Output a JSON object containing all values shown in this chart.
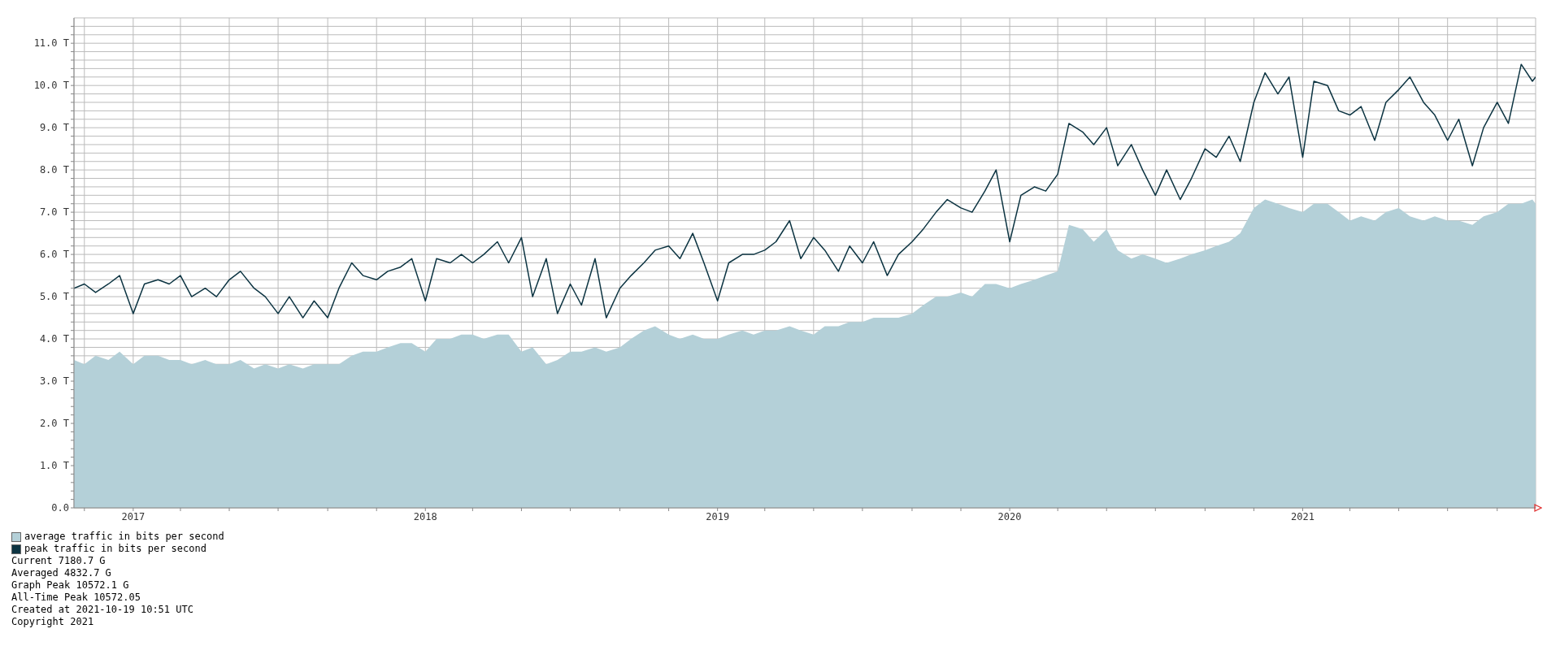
{
  "chart_data": {
    "type": "area",
    "x": [
      "2016-10-19",
      "2016-11-01",
      "2016-11-15",
      "2016-12-01",
      "2016-12-15",
      "2017-01-01",
      "2017-01-15",
      "2017-02-01",
      "2017-02-15",
      "2017-03-01",
      "2017-03-15",
      "2017-04-01",
      "2017-04-15",
      "2017-05-01",
      "2017-05-15",
      "2017-06-01",
      "2017-06-15",
      "2017-07-01",
      "2017-07-15",
      "2017-08-01",
      "2017-08-15",
      "2017-09-01",
      "2017-09-15",
      "2017-10-01",
      "2017-10-15",
      "2017-11-01",
      "2017-11-15",
      "2017-12-01",
      "2017-12-15",
      "2018-01-01",
      "2018-01-15",
      "2018-02-01",
      "2018-02-15",
      "2018-03-01",
      "2018-03-15",
      "2018-04-01",
      "2018-04-15",
      "2018-05-01",
      "2018-05-15",
      "2018-06-01",
      "2018-06-15",
      "2018-07-01",
      "2018-07-15",
      "2018-08-01",
      "2018-08-15",
      "2018-09-01",
      "2018-09-15",
      "2018-10-01",
      "2018-10-15",
      "2018-11-01",
      "2018-11-15",
      "2018-12-01",
      "2018-12-15",
      "2019-01-01",
      "2019-01-15",
      "2019-02-01",
      "2019-02-15",
      "2019-03-01",
      "2019-03-15",
      "2019-04-01",
      "2019-04-15",
      "2019-05-01",
      "2019-05-15",
      "2019-06-01",
      "2019-06-15",
      "2019-07-01",
      "2019-07-15",
      "2019-08-01",
      "2019-08-15",
      "2019-09-01",
      "2019-09-15",
      "2019-10-01",
      "2019-10-15",
      "2019-11-01",
      "2019-11-15",
      "2019-12-01",
      "2019-12-15",
      "2020-01-01",
      "2020-01-15",
      "2020-02-01",
      "2020-02-15",
      "2020-03-01",
      "2020-03-15",
      "2020-04-01",
      "2020-04-15",
      "2020-05-01",
      "2020-05-15",
      "2020-06-01",
      "2020-06-15",
      "2020-07-01",
      "2020-07-15",
      "2020-08-01",
      "2020-08-15",
      "2020-09-01",
      "2020-09-15",
      "2020-10-01",
      "2020-10-15",
      "2020-11-01",
      "2020-11-15",
      "2020-12-01",
      "2020-12-15",
      "2021-01-01",
      "2021-01-15",
      "2021-02-01",
      "2021-02-15",
      "2021-03-01",
      "2021-03-15",
      "2021-04-01",
      "2021-04-15",
      "2021-05-01",
      "2021-05-15",
      "2021-06-01",
      "2021-06-15",
      "2021-07-01",
      "2021-07-15",
      "2021-08-01",
      "2021-08-15",
      "2021-09-01",
      "2021-09-15",
      "2021-10-01",
      "2021-10-15",
      "2021-10-19"
    ],
    "series": [
      {
        "name": "average traffic in bits per second",
        "color": "#b4d0d8",
        "values": [
          3.5,
          3.4,
          3.6,
          3.5,
          3.7,
          3.4,
          3.6,
          3.6,
          3.5,
          3.5,
          3.4,
          3.5,
          3.4,
          3.4,
          3.5,
          3.3,
          3.4,
          3.3,
          3.4,
          3.3,
          3.4,
          3.4,
          3.4,
          3.6,
          3.7,
          3.7,
          3.8,
          3.9,
          3.9,
          3.7,
          4.0,
          4.0,
          4.1,
          4.1,
          4.0,
          4.1,
          4.1,
          3.7,
          3.8,
          3.4,
          3.5,
          3.7,
          3.7,
          3.8,
          3.7,
          3.8,
          4.0,
          4.2,
          4.3,
          4.1,
          4.0,
          4.1,
          4.0,
          4.0,
          4.1,
          4.2,
          4.1,
          4.2,
          4.2,
          4.3,
          4.2,
          4.1,
          4.3,
          4.3,
          4.4,
          4.4,
          4.5,
          4.5,
          4.5,
          4.6,
          4.8,
          5.0,
          5.0,
          5.1,
          5.0,
          5.3,
          5.3,
          5.2,
          5.3,
          5.4,
          5.5,
          5.6,
          6.7,
          6.6,
          6.3,
          6.6,
          6.1,
          5.9,
          6.0,
          5.9,
          5.8,
          5.9,
          6.0,
          6.1,
          6.2,
          6.3,
          6.5,
          7.1,
          7.3,
          7.2,
          7.1,
          7.0,
          7.2,
          7.2,
          7.0,
          6.8,
          6.9,
          6.8,
          7.0,
          7.1,
          6.9,
          6.8,
          6.9,
          6.8,
          6.8,
          6.7,
          6.9,
          7.0,
          7.2,
          7.2,
          7.3,
          7.2
        ]
      },
      {
        "name": "peak traffic in bits per second",
        "type": "line",
        "color": "#0c3442",
        "values": [
          5.2,
          5.3,
          5.1,
          5.3,
          5.5,
          4.6,
          5.3,
          5.4,
          5.3,
          5.5,
          5.0,
          5.2,
          5.0,
          5.4,
          5.6,
          5.2,
          5.0,
          4.6,
          5.0,
          4.5,
          4.9,
          4.5,
          5.2,
          5.8,
          5.5,
          5.4,
          5.6,
          5.7,
          5.9,
          4.9,
          5.9,
          5.8,
          6.0,
          5.8,
          6.0,
          6.3,
          5.8,
          6.4,
          5.0,
          5.9,
          4.6,
          5.3,
          4.8,
          5.9,
          4.5,
          5.2,
          5.5,
          5.8,
          6.1,
          6.2,
          5.9,
          6.5,
          5.8,
          4.9,
          5.8,
          6.0,
          6.0,
          6.1,
          6.3,
          6.8,
          5.9,
          6.4,
          6.1,
          5.6,
          6.2,
          5.8,
          6.3,
          5.5,
          6.0,
          6.3,
          6.6,
          7.0,
          7.3,
          7.1,
          7.0,
          7.5,
          8.0,
          6.3,
          7.4,
          7.6,
          7.5,
          7.9,
          9.1,
          8.9,
          8.6,
          9.0,
          8.1,
          8.6,
          8.0,
          7.4,
          8.0,
          7.3,
          7.8,
          8.5,
          8.3,
          8.8,
          8.2,
          9.6,
          10.3,
          9.8,
          10.2,
          8.3,
          10.1,
          10.0,
          9.4,
          9.3,
          9.5,
          8.7,
          9.6,
          9.9,
          10.2,
          9.6,
          9.3,
          8.7,
          9.2,
          8.1,
          9.0,
          9.6,
          9.1,
          10.5,
          10.1,
          10.2
        ]
      }
    ],
    "xlim": [
      "2016-10-19",
      "2021-10-19"
    ],
    "xticks": [
      {
        "value": "2016-11-01",
        "label": null
      },
      {
        "value": "2017-01-01",
        "label": "2017"
      },
      {
        "value": "2017-03-01",
        "label": null
      },
      {
        "value": "2017-05-01",
        "label": null
      },
      {
        "value": "2017-07-01",
        "label": null
      },
      {
        "value": "2017-09-01",
        "label": null
      },
      {
        "value": "2017-11-01",
        "label": null
      },
      {
        "value": "2018-01-01",
        "label": "2018"
      },
      {
        "value": "2018-03-01",
        "label": null
      },
      {
        "value": "2018-05-01",
        "label": null
      },
      {
        "value": "2018-07-01",
        "label": null
      },
      {
        "value": "2018-09-01",
        "label": null
      },
      {
        "value": "2018-11-01",
        "label": null
      },
      {
        "value": "2019-01-01",
        "label": "2019"
      },
      {
        "value": "2019-03-01",
        "label": null
      },
      {
        "value": "2019-05-01",
        "label": null
      },
      {
        "value": "2019-07-01",
        "label": null
      },
      {
        "value": "2019-09-01",
        "label": null
      },
      {
        "value": "2019-11-01",
        "label": null
      },
      {
        "value": "2020-01-01",
        "label": "2020"
      },
      {
        "value": "2020-03-01",
        "label": null
      },
      {
        "value": "2020-05-01",
        "label": null
      },
      {
        "value": "2020-07-01",
        "label": null
      },
      {
        "value": "2020-09-01",
        "label": null
      },
      {
        "value": "2020-11-01",
        "label": null
      },
      {
        "value": "2021-01-01",
        "label": "2021"
      },
      {
        "value": "2021-03-01",
        "label": null
      },
      {
        "value": "2021-05-01",
        "label": null
      },
      {
        "value": "2021-07-01",
        "label": null
      },
      {
        "value": "2021-09-01",
        "label": null
      }
    ],
    "ylim": [
      0,
      11.6
    ],
    "yticks": [
      {
        "value": 0,
        "label": "0.0"
      },
      {
        "value": 0.2,
        "label": null
      },
      {
        "value": 0.4,
        "label": null
      },
      {
        "value": 0.6,
        "label": null
      },
      {
        "value": 0.8,
        "label": null
      },
      {
        "value": 1,
        "label": "1.0 T"
      },
      {
        "value": 1.2,
        "label": null
      },
      {
        "value": 1.4,
        "label": null
      },
      {
        "value": 1.6,
        "label": null
      },
      {
        "value": 1.8,
        "label": null
      },
      {
        "value": 2,
        "label": "2.0 T"
      },
      {
        "value": 2.2,
        "label": null
      },
      {
        "value": 2.4,
        "label": null
      },
      {
        "value": 2.6,
        "label": null
      },
      {
        "value": 2.8,
        "label": null
      },
      {
        "value": 3,
        "label": "3.0 T"
      },
      {
        "value": 3.2,
        "label": null
      },
      {
        "value": 3.4,
        "label": null
      },
      {
        "value": 3.6,
        "label": null
      },
      {
        "value": 3.8,
        "label": null
      },
      {
        "value": 4,
        "label": "4.0 T"
      },
      {
        "value": 4.2,
        "label": null
      },
      {
        "value": 4.4,
        "label": null
      },
      {
        "value": 4.6,
        "label": null
      },
      {
        "value": 4.8,
        "label": null
      },
      {
        "value": 5,
        "label": "5.0 T"
      },
      {
        "value": 5.2,
        "label": null
      },
      {
        "value": 5.4,
        "label": null
      },
      {
        "value": 5.6,
        "label": null
      },
      {
        "value": 5.8,
        "label": null
      },
      {
        "value": 6,
        "label": "6.0 T"
      },
      {
        "value": 6.2,
        "label": null
      },
      {
        "value": 6.4,
        "label": null
      },
      {
        "value": 6.6,
        "label": null
      },
      {
        "value": 6.8,
        "label": null
      },
      {
        "value": 7,
        "label": "7.0 T"
      },
      {
        "value": 7.2,
        "label": null
      },
      {
        "value": 7.4,
        "label": null
      },
      {
        "value": 7.6,
        "label": null
      },
      {
        "value": 7.8,
        "label": null
      },
      {
        "value": 8,
        "label": "8.0 T"
      },
      {
        "value": 8.2,
        "label": null
      },
      {
        "value": 8.4,
        "label": null
      },
      {
        "value": 8.6,
        "label": null
      },
      {
        "value": 8.8,
        "label": null
      },
      {
        "value": 9,
        "label": "9.0 T"
      },
      {
        "value": 9.2,
        "label": null
      },
      {
        "value": 9.4,
        "label": null
      },
      {
        "value": 9.6,
        "label": null
      },
      {
        "value": 9.8,
        "label": null
      },
      {
        "value": 10,
        "label": "10.0 T"
      },
      {
        "value": 10.2,
        "label": null
      },
      {
        "value": 10.4,
        "label": null
      },
      {
        "value": 10.6,
        "label": null
      },
      {
        "value": 10.8,
        "label": null
      },
      {
        "value": 11,
        "label": "11.0 T"
      },
      {
        "value": 11.2,
        "label": null
      },
      {
        "value": 11.4,
        "label": null
      }
    ],
    "grid": true,
    "legend": "bottom",
    "annotations": [
      "Current 7180.7 G",
      "Averaged 4832.7 G",
      "Graph Peak 10572.1 G",
      "All-Time Peak 10572.05",
      "Created at 2021-10-19 10:51 UTC",
      "Copyright 2021"
    ]
  }
}
